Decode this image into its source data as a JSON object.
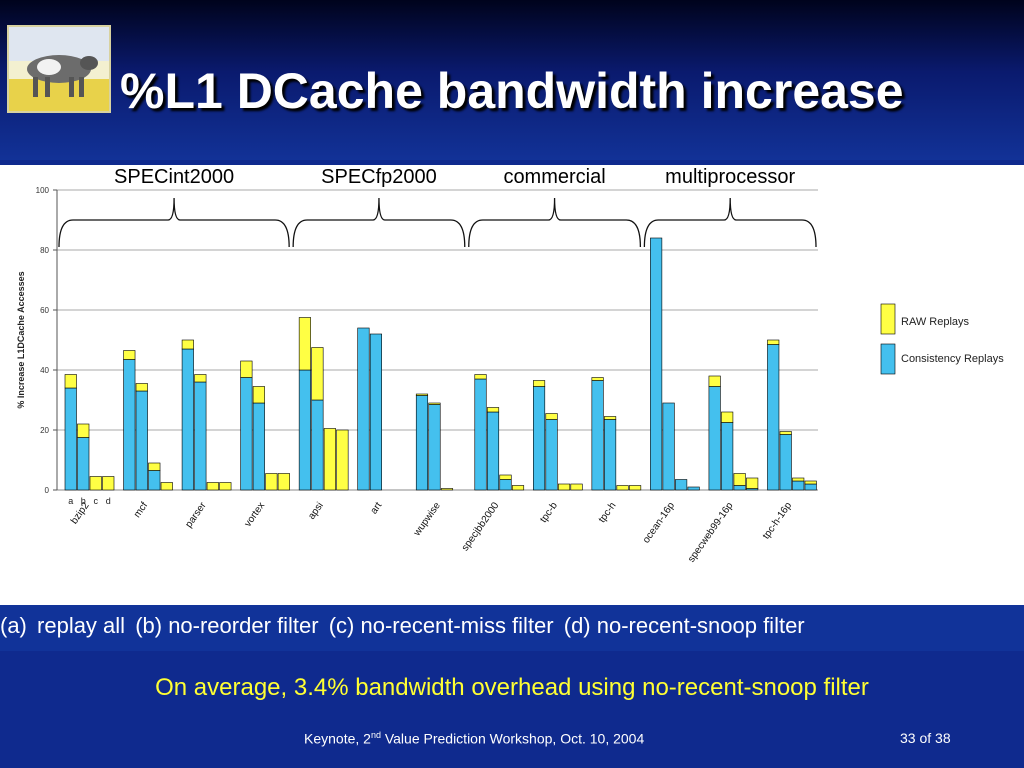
{
  "slide": {
    "title": "%L1 DCache bandwidth increase",
    "filters": [
      "(a)",
      "replay all",
      "(b) no-reorder filter",
      "(c) no-recent-miss filter",
      "(d) no-recent-snoop filter"
    ],
    "summary": "On average, 3.4% bandwidth overhead using no-recent-snoop filter",
    "footer": {
      "prefix": "Keynote, 2",
      "sup": "nd",
      "suffix": " Value Prediction Workshop, Oct. 10, 2004"
    },
    "page": "33 of 38"
  },
  "colors": {
    "raw": "#ffff44",
    "consistency": "#44c0ee",
    "background": "#0f2a8e",
    "summary_text": "#ffff33"
  },
  "chart_data": {
    "type": "bar",
    "stacked": true,
    "ylabel": "% Increase L1DCache Accesses",
    "ylim": [
      0,
      100
    ],
    "yticks": [
      0,
      20,
      40,
      60,
      80,
      100
    ],
    "grid": true,
    "legend": [
      "RAW Replays",
      "Consistency Replays"
    ],
    "legend_position": "right",
    "sub_bar_labels": [
      "a",
      "b",
      "c",
      "d"
    ],
    "group_labels": [
      {
        "label": "SPECint2000",
        "from": 0,
        "to": 3
      },
      {
        "label": "SPECfp2000",
        "from": 4,
        "to": 6
      },
      {
        "label": "commercial",
        "from": 7,
        "to": 9
      },
      {
        "label": "multiprocessor",
        "from": 10,
        "to": 12
      }
    ],
    "benchmarks": [
      {
        "name": "bzip2",
        "raw": [
          4.5,
          4.5,
          4.5,
          4.5
        ],
        "consistency": [
          34,
          17.5,
          0,
          0
        ]
      },
      {
        "name": "mcf",
        "raw": [
          3,
          2.5,
          2.5,
          2.5
        ],
        "consistency": [
          43.5,
          33,
          6.5,
          0
        ]
      },
      {
        "name": "parser",
        "raw": [
          3,
          2.5,
          2.5,
          2.5
        ],
        "consistency": [
          47,
          36,
          0,
          0
        ]
      },
      {
        "name": "vortex",
        "raw": [
          5.5,
          5.5,
          5.5,
          5.5
        ],
        "consistency": [
          37.5,
          29,
          0,
          0
        ]
      },
      {
        "name": "apsi",
        "raw": [
          17.5,
          17.5,
          20.5,
          20
        ],
        "consistency": [
          40,
          30,
          0,
          0
        ]
      },
      {
        "name": "art",
        "raw": [
          0,
          0
        ],
        "consistency": [
          54,
          52
        ]
      },
      {
        "name": "wupwise",
        "raw": [
          0.5,
          0.5,
          0.5
        ],
        "consistency": [
          31.5,
          28.5,
          0
        ]
      },
      {
        "name": "specjbb2000",
        "raw": [
          1.5,
          1.5,
          1.5,
          1.5
        ],
        "consistency": [
          37,
          26,
          3.5,
          0
        ]
      },
      {
        "name": "tpc-b",
        "raw": [
          2,
          2,
          2,
          2
        ],
        "consistency": [
          34.5,
          23.5,
          0,
          0
        ]
      },
      {
        "name": "tpc-h",
        "raw": [
          1,
          1,
          1.5,
          1.5
        ],
        "consistency": [
          36.5,
          23.5,
          0,
          0
        ]
      },
      {
        "name": "ocean-16p",
        "raw": [
          0,
          0,
          0,
          0
        ],
        "consistency": [
          84,
          29,
          3.5,
          1
        ]
      },
      {
        "name": "specweb99-16p",
        "raw": [
          3.5,
          3.5,
          4,
          3.5
        ],
        "consistency": [
          34.5,
          22.5,
          1.5,
          0.5
        ]
      },
      {
        "name": "tpc-h-16p",
        "raw": [
          1.5,
          1,
          1,
          1
        ],
        "consistency": [
          48.5,
          18.5,
          3,
          2
        ]
      }
    ]
  }
}
